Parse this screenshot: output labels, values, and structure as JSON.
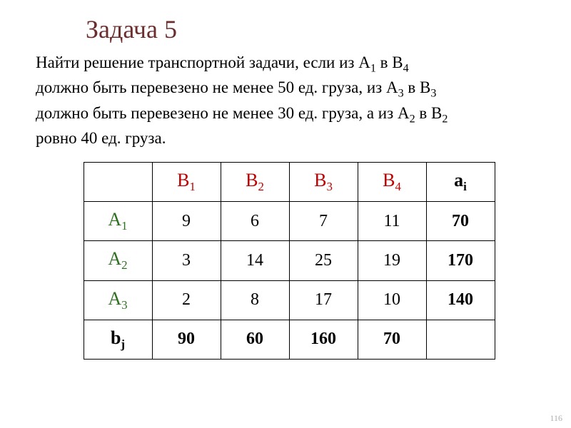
{
  "title": "Задача 5",
  "problem": {
    "l1a": "Найти решение транспортной задачи, если из А",
    "l1b": " в В",
    "l2": "должно быть перевезено не менее 50 ед. груза, из А",
    "l2b": " в В",
    "l3": "должно быть перевезено не менее 30 ед. груза, а из А",
    "l3b": " в В",
    "l4": "ровно 40 ед. груза.",
    "s1": "1",
    "s4": "4",
    "s3": "3",
    "s2": "2"
  },
  "table": {
    "colHeaders": {
      "b1": "В",
      "b2": "В",
      "b3": "В",
      "b4": "В",
      "ai": "а",
      "aisub": "i",
      "s1": "1",
      "s2": "2",
      "s3": "3",
      "s4": "4"
    },
    "rowHeaders": {
      "a1": "А",
      "a2": "А",
      "a3": "А",
      "bj": "b",
      "bjsub": "j",
      "s1": "1",
      "s2": "2",
      "s3": "3"
    },
    "rows": {
      "r1": {
        "c1": "9",
        "c2": "6",
        "c3": "7",
        "c4": "11",
        "ai": "70"
      },
      "r2": {
        "c1": "3",
        "c2": "14",
        "c3": "25",
        "c4": "19",
        "ai": "170"
      },
      "r3": {
        "c1": "2",
        "c2": "8",
        "c3": "17",
        "c4": "10",
        "ai": "140"
      },
      "bj": {
        "c1": "90",
        "c2": "60",
        "c3": "160",
        "c4": "70"
      }
    }
  },
  "pageNumber": "116",
  "style": {
    "titleColor": "#6b2e2e",
    "colHeaderColor": "#c00000",
    "rowHeaderColor": "#2e7020",
    "textColor": "#000000",
    "borderColor": "#000000",
    "background": "#ffffff",
    "titleFontSize": 36,
    "bodyFontSize": 23,
    "tableFontSize": 24
  }
}
